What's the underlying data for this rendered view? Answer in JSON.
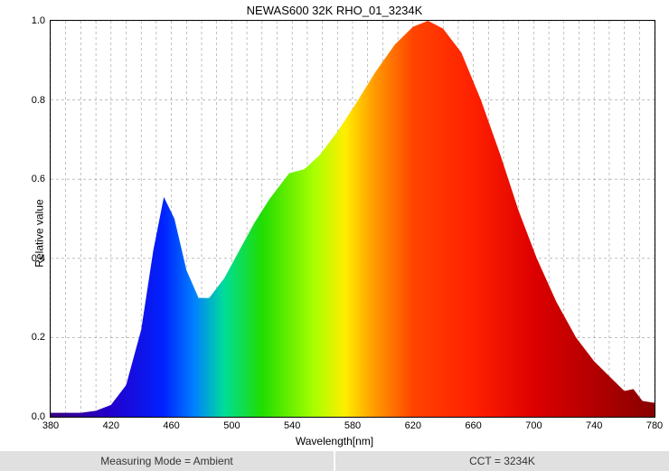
{
  "title": "NEWAS600 32K RHO_01_3234K",
  "xlabel": "Wavelength[nm]",
  "ylabel": "Relative value",
  "footer": {
    "left": "Measuring Mode = Ambient",
    "right": "CCT = 3234K"
  },
  "chart": {
    "type": "area",
    "xlim": [
      380,
      780
    ],
    "ylim": [
      0.0,
      1.0
    ],
    "xtick_start": 380,
    "xtick_step": 40,
    "xtick_end": 780,
    "ytick_start": 0.0,
    "ytick_step": 0.2,
    "ytick_end": 1.0,
    "xminor_step": 10,
    "background_color": "#ffffff",
    "grid_color": "#999999",
    "grid_dash": "3,3",
    "axis_color": "#000000",
    "label_fontsize": 12,
    "tick_fontsize": 11,
    "title_fontsize": 13,
    "gradient_stops": [
      {
        "nm": 380,
        "color": "#3a0080"
      },
      {
        "nm": 420,
        "color": "#2200cc"
      },
      {
        "nm": 455,
        "color": "#0022ff"
      },
      {
        "nm": 475,
        "color": "#0080ff"
      },
      {
        "nm": 495,
        "color": "#00dd99"
      },
      {
        "nm": 520,
        "color": "#20dd00"
      },
      {
        "nm": 555,
        "color": "#aaff00"
      },
      {
        "nm": 575,
        "color": "#ffee00"
      },
      {
        "nm": 595,
        "color": "#ff9900"
      },
      {
        "nm": 620,
        "color": "#ff4400"
      },
      {
        "nm": 660,
        "color": "#ff2000"
      },
      {
        "nm": 700,
        "color": "#dd0000"
      },
      {
        "nm": 780,
        "color": "#880000"
      }
    ],
    "data": [
      {
        "x": 380,
        "y": 0.01
      },
      {
        "x": 390,
        "y": 0.01
      },
      {
        "x": 400,
        "y": 0.01
      },
      {
        "x": 410,
        "y": 0.015
      },
      {
        "x": 420,
        "y": 0.03
      },
      {
        "x": 430,
        "y": 0.08
      },
      {
        "x": 440,
        "y": 0.22
      },
      {
        "x": 448,
        "y": 0.42
      },
      {
        "x": 455,
        "y": 0.555
      },
      {
        "x": 462,
        "y": 0.5
      },
      {
        "x": 470,
        "y": 0.37
      },
      {
        "x": 478,
        "y": 0.3
      },
      {
        "x": 485,
        "y": 0.3
      },
      {
        "x": 495,
        "y": 0.35
      },
      {
        "x": 505,
        "y": 0.42
      },
      {
        "x": 515,
        "y": 0.49
      },
      {
        "x": 525,
        "y": 0.55
      },
      {
        "x": 538,
        "y": 0.615
      },
      {
        "x": 548,
        "y": 0.625
      },
      {
        "x": 558,
        "y": 0.66
      },
      {
        "x": 570,
        "y": 0.72
      },
      {
        "x": 582,
        "y": 0.79
      },
      {
        "x": 595,
        "y": 0.87
      },
      {
        "x": 608,
        "y": 0.94
      },
      {
        "x": 620,
        "y": 0.985
      },
      {
        "x": 630,
        "y": 1.0
      },
      {
        "x": 640,
        "y": 0.98
      },
      {
        "x": 652,
        "y": 0.92
      },
      {
        "x": 665,
        "y": 0.8
      },
      {
        "x": 678,
        "y": 0.66
      },
      {
        "x": 690,
        "y": 0.52
      },
      {
        "x": 702,
        "y": 0.4
      },
      {
        "x": 715,
        "y": 0.29
      },
      {
        "x": 728,
        "y": 0.2
      },
      {
        "x": 740,
        "y": 0.14
      },
      {
        "x": 752,
        "y": 0.095
      },
      {
        "x": 760,
        "y": 0.065
      },
      {
        "x": 766,
        "y": 0.07
      },
      {
        "x": 772,
        "y": 0.04
      },
      {
        "x": 780,
        "y": 0.035
      }
    ]
  }
}
